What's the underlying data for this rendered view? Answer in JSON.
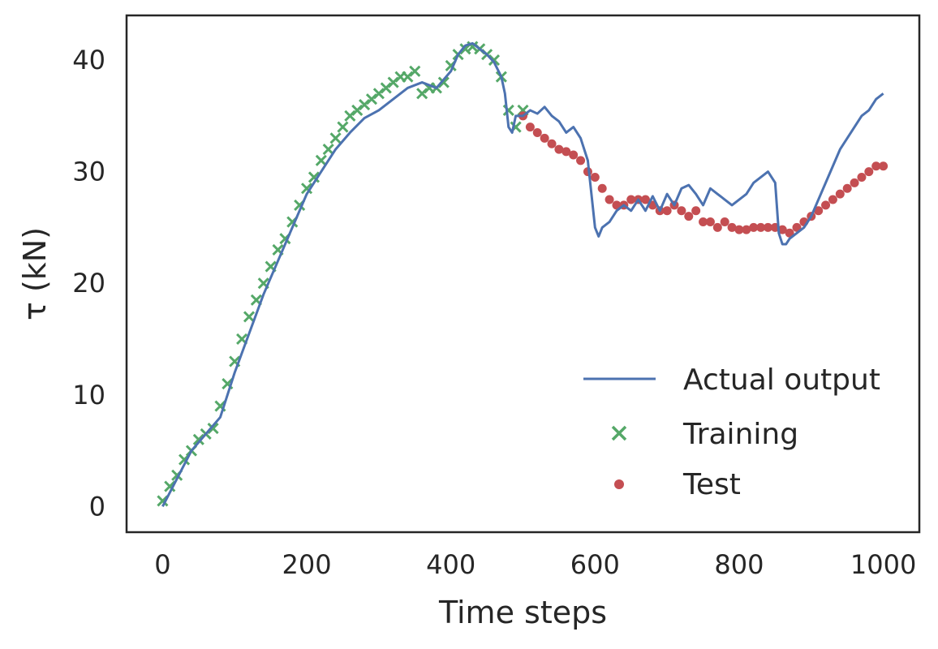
{
  "chart_data": {
    "type": "line",
    "title": "",
    "xlabel": "Time steps",
    "ylabel": "τ (kN)",
    "xlim": [
      -50,
      1050
    ],
    "ylim": [
      -2.3,
      44
    ],
    "xticks": [
      0,
      200,
      400,
      600,
      800,
      1000
    ],
    "xtick_labels": [
      "0",
      "200",
      "400",
      "600",
      "800",
      "1000"
    ],
    "yticks": [
      0,
      10,
      20,
      30,
      40
    ],
    "ytick_labels": [
      "0",
      "10",
      "20",
      "30",
      "40"
    ],
    "grid": false,
    "legend_position": "lower-right",
    "series": [
      {
        "name": "Actual output",
        "kind": "line",
        "color": "#4c72b0",
        "x": [
          0,
          20,
          40,
          60,
          80,
          100,
          120,
          140,
          160,
          180,
          200,
          220,
          240,
          260,
          280,
          300,
          320,
          340,
          360,
          380,
          400,
          410,
          420,
          430,
          440,
          450,
          460,
          470,
          475,
          480,
          485,
          490,
          500,
          510,
          520,
          530,
          540,
          550,
          560,
          570,
          580,
          590,
          600,
          605,
          610,
          620,
          630,
          640,
          650,
          660,
          670,
          680,
          690,
          700,
          710,
          720,
          730,
          740,
          750,
          760,
          770,
          780,
          790,
          800,
          810,
          820,
          830,
          840,
          850,
          855,
          860,
          865,
          870,
          880,
          890,
          900,
          910,
          920,
          930,
          940,
          950,
          960,
          970,
          980,
          990,
          1000
        ],
        "y": [
          0,
          2.5,
          5,
          6.5,
          8,
          12,
          15.5,
          19,
          22,
          25,
          28,
          30,
          32,
          33.5,
          34.8,
          35.5,
          36.5,
          37.5,
          38,
          37.5,
          39,
          40.5,
          41.3,
          41.5,
          41,
          40.5,
          39.8,
          38.5,
          37,
          34,
          33.5,
          35,
          35,
          35.5,
          35.2,
          35.8,
          35,
          34.5,
          33.5,
          34,
          33,
          31,
          25,
          24.2,
          25,
          25.5,
          26.5,
          27,
          26.5,
          27.5,
          26.5,
          27.8,
          26.5,
          28,
          27,
          28.5,
          28.8,
          28,
          27,
          28.5,
          28,
          27.5,
          27,
          27.5,
          28,
          29,
          29.5,
          30,
          29,
          24.5,
          23.5,
          23.5,
          24,
          24.5,
          25,
          26,
          27.5,
          29,
          30.5,
          32,
          33,
          34,
          35,
          35.5,
          36.5,
          37
        ]
      },
      {
        "name": "Training",
        "kind": "scatter",
        "marker": "x",
        "color": "#55a868",
        "x": [
          0,
          10,
          20,
          30,
          40,
          50,
          60,
          70,
          80,
          90,
          100,
          110,
          120,
          130,
          140,
          150,
          160,
          170,
          180,
          190,
          200,
          210,
          220,
          230,
          240,
          250,
          260,
          270,
          280,
          290,
          300,
          310,
          320,
          330,
          340,
          350,
          360,
          370,
          380,
          390,
          400,
          410,
          420,
          430,
          440,
          450,
          460,
          470,
          480,
          490,
          500
        ],
        "y": [
          0.5,
          1.8,
          2.8,
          4.2,
          5,
          6,
          6.5,
          7,
          9,
          11,
          13,
          15,
          17,
          18.5,
          20,
          21.5,
          23,
          24,
          25.5,
          27,
          28.5,
          29.5,
          31,
          32,
          33,
          34,
          35,
          35.5,
          36,
          36.5,
          37,
          37.5,
          38,
          38.5,
          38.5,
          39,
          37,
          37.5,
          37.5,
          38,
          39.5,
          40.5,
          41,
          41.2,
          41,
          40.5,
          40,
          38.5,
          35.5,
          34,
          35.5
        ]
      },
      {
        "name": "Test",
        "kind": "scatter",
        "marker": "o",
        "color": "#c44e52",
        "x": [
          500,
          510,
          520,
          530,
          540,
          550,
          560,
          570,
          580,
          590,
          600,
          610,
          620,
          630,
          640,
          650,
          660,
          670,
          680,
          690,
          700,
          710,
          720,
          730,
          740,
          750,
          760,
          770,
          780,
          790,
          800,
          810,
          820,
          830,
          840,
          850,
          860,
          870,
          880,
          890,
          900,
          910,
          920,
          930,
          940,
          950,
          960,
          970,
          980,
          990,
          1000
        ],
        "y": [
          35,
          34,
          33.5,
          33,
          32.5,
          32,
          31.8,
          31.5,
          31,
          30,
          29.5,
          28.5,
          27.5,
          27,
          27,
          27.5,
          27.5,
          27.5,
          27,
          26.5,
          26.5,
          27,
          26.5,
          26,
          26.5,
          25.5,
          25.5,
          25,
          25.5,
          25,
          24.8,
          24.8,
          25,
          25,
          25,
          25,
          24.8,
          24.5,
          25,
          25.5,
          26,
          26.5,
          27,
          27.5,
          28,
          28.5,
          29,
          29.5,
          30,
          30.5,
          30.5
        ]
      }
    ]
  }
}
